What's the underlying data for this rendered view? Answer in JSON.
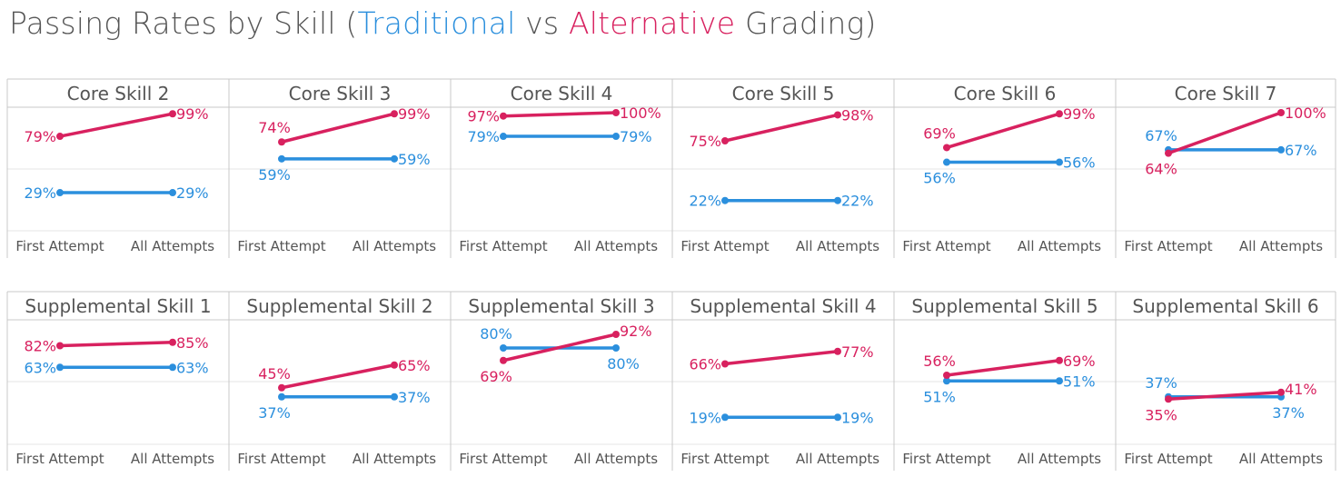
{
  "title": {
    "prefix": "Passing Rates by Skill (",
    "traditional": "Traditional",
    "middle": " vs ",
    "alternative": "Alternative",
    "suffix": " Grading)"
  },
  "colors": {
    "traditional": "#2b8fdd",
    "alternative": "#d8215f",
    "text": "#555555",
    "grid": "#e6e6e6",
    "border": "#c8c8c8"
  },
  "chart_data": {
    "type": "line",
    "title": "Passing Rates by Skill (Traditional vs Alternative Grading)",
    "categories": [
      "First Attempt",
      "All Attempts"
    ],
    "series_names": [
      "Traditional",
      "Alternative"
    ],
    "ylim": [
      0,
      100
    ],
    "rows": [
      {
        "panels": [
          {
            "name": "Core Skill 2",
            "traditional": [
              29,
              29
            ],
            "alternative": [
              79,
              99
            ]
          },
          {
            "name": "Core Skill 3",
            "traditional": [
              59,
              59
            ],
            "alternative": [
              74,
              99
            ]
          },
          {
            "name": "Core Skill 4",
            "traditional": [
              79,
              79
            ],
            "alternative": [
              97,
              100
            ]
          },
          {
            "name": "Core Skill 5",
            "traditional": [
              22,
              22
            ],
            "alternative": [
              75,
              98
            ]
          },
          {
            "name": "Core Skill 6",
            "traditional": [
              56,
              56
            ],
            "alternative": [
              69,
              99
            ]
          },
          {
            "name": "Core Skill 7",
            "traditional": [
              67,
              67
            ],
            "alternative": [
              64,
              100
            ]
          }
        ]
      },
      {
        "panels": [
          {
            "name": "Supplemental Skill 1",
            "traditional": [
              63,
              63
            ],
            "alternative": [
              82,
              85
            ]
          },
          {
            "name": "Supplemental Skill 2",
            "traditional": [
              37,
              37
            ],
            "alternative": [
              45,
              65
            ]
          },
          {
            "name": "Supplemental Skill 3",
            "traditional": [
              80,
              80
            ],
            "alternative": [
              69,
              92
            ]
          },
          {
            "name": "Supplemental Skill 4",
            "traditional": [
              19,
              19
            ],
            "alternative": [
              66,
              77
            ]
          },
          {
            "name": "Supplemental Skill 5",
            "traditional": [
              51,
              51
            ],
            "alternative": [
              56,
              69
            ]
          },
          {
            "name": "Supplemental Skill 6",
            "traditional": [
              37,
              37
            ],
            "alternative": [
              35,
              41
            ]
          }
        ]
      }
    ]
  }
}
